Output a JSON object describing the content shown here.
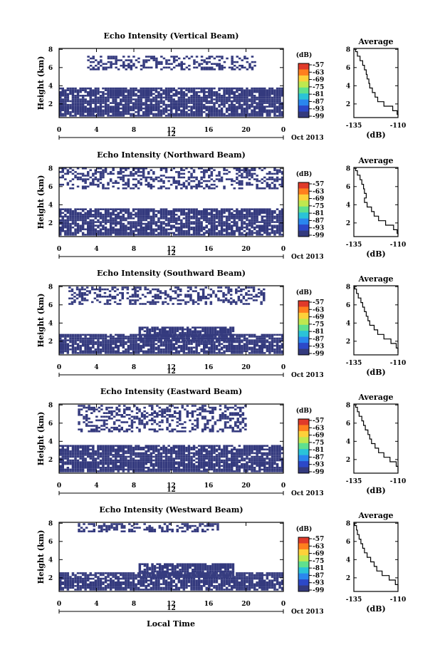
{
  "figure": {
    "x_axis_label": "Local Time",
    "date_label": "Oct 2013",
    "colorbar_unit": "(dB)",
    "colorbar_ticks": [
      "-57",
      "-63",
      "-69",
      "-75",
      "-81",
      "-87",
      "-93",
      "-99"
    ],
    "colorbar_colors": [
      "#e03a2a",
      "#ff7f1e",
      "#fdd13a",
      "#bfe84f",
      "#5fe08e",
      "#2ac3d8",
      "#2a86ee",
      "#2c48c8",
      "#343a7e"
    ],
    "mask_color": "#343a7e"
  },
  "chart_data": [
    {
      "type": "heatmap",
      "title": "Echo Intensity (Vertical Beam)",
      "ylabel": "Height (km)",
      "xlabel": "Local Time",
      "x_ticks": [
        "0",
        "4",
        "8",
        "12",
        "16",
        "20",
        "0"
      ],
      "day_marker": "12",
      "y_ticks": [
        "2",
        "4",
        "6",
        "8"
      ],
      "xlim": [
        0,
        24
      ],
      "ylim": [
        0.5,
        8.1
      ],
      "unit": "dB",
      "color_range": [
        -99,
        -57
      ],
      "echo_regions": [
        {
          "layer": "lower",
          "x_range": [
            0,
            24
          ],
          "height_km": [
            0.6,
            3.7
          ]
        },
        {
          "layer": "upper",
          "x_range": [
            3,
            21
          ],
          "height_km": [
            5.7,
            7.3
          ]
        }
      ],
      "average_profile": {
        "title": "Average",
        "xlabel": "(dB)",
        "x_ticks": [
          "-135",
          "-110"
        ],
        "y_ticks": [
          "2",
          "4",
          "6",
          "8"
        ],
        "xlim": [
          -135,
          -110
        ],
        "ylim": [
          0.5,
          8.1
        ],
        "height_km": [
          8.0,
          7.5,
          7.0,
          6.5,
          6.0,
          5.5,
          5.0,
          4.5,
          4.0,
          3.5,
          3.0,
          2.5,
          2.0,
          1.5,
          1.0,
          0.7
        ],
        "db": [
          -134.0,
          -133.0,
          -131.5,
          -130.0,
          -129.0,
          -128.0,
          -127.5,
          -126.5,
          -126.0,
          -124.5,
          -123.0,
          -121.5,
          -118.0,
          -113.0,
          -110.5,
          -110.0
        ]
      }
    },
    {
      "type": "heatmap",
      "title": "Echo Intensity (Northward Beam)",
      "ylabel": "Height (km)",
      "xlabel": "Local Time",
      "x_ticks": [
        "0",
        "4",
        "8",
        "12",
        "16",
        "20",
        "0"
      ],
      "day_marker": "12",
      "y_ticks": [
        "2",
        "4",
        "6",
        "8"
      ],
      "xlim": [
        0,
        24
      ],
      "ylim": [
        0.5,
        8.1
      ],
      "unit": "dB",
      "color_range": [
        -99,
        -57
      ],
      "echo_regions": [
        {
          "layer": "lower",
          "x_range": [
            0,
            24
          ],
          "height_km": [
            0.6,
            3.5
          ]
        },
        {
          "layer": "upper",
          "x_range": [
            0,
            24
          ],
          "height_km": [
            5.7,
            8.0
          ]
        }
      ],
      "average_profile": {
        "title": "Average",
        "xlabel": "(dB)",
        "x_ticks": [
          "-135",
          "-110"
        ],
        "y_ticks": [
          "2",
          "4",
          "6",
          "8"
        ],
        "xlim": [
          -135,
          -110
        ],
        "ylim": [
          0.5,
          8.1
        ],
        "height_km": [
          8.0,
          7.5,
          7.0,
          6.5,
          6.0,
          5.5,
          5.0,
          4.5,
          4.0,
          3.5,
          3.0,
          2.5,
          2.0,
          1.5,
          1.0,
          0.7
        ],
        "db": [
          -134.0,
          -133.0,
          -131.5,
          -130.5,
          -129.5,
          -129.0,
          -128.0,
          -129.0,
          -127.5,
          -125.0,
          -123.5,
          -121.0,
          -117.0,
          -112.5,
          -110.5,
          -110.0
        ]
      }
    },
    {
      "type": "heatmap",
      "title": "Echo Intensity (Southward Beam)",
      "ylabel": "Height (km)",
      "xlabel": "Local Time",
      "x_ticks": [
        "0",
        "4",
        "8",
        "12",
        "16",
        "20",
        "0"
      ],
      "day_marker": "12",
      "y_ticks": [
        "2",
        "4",
        "6",
        "8"
      ],
      "xlim": [
        0,
        24
      ],
      "ylim": [
        0.5,
        8.1
      ],
      "unit": "dB",
      "color_range": [
        -99,
        -57
      ],
      "echo_regions": [
        {
          "layer": "lower",
          "x_range": [
            0,
            24
          ],
          "height_km": [
            0.6,
            2.8
          ]
        },
        {
          "layer": "middle",
          "x_range": [
            8.5,
            18.5
          ],
          "height_km": [
            2.0,
            3.6
          ]
        },
        {
          "layer": "upper",
          "x_range": [
            1,
            22
          ],
          "height_km": [
            6.0,
            8.0
          ]
        }
      ],
      "average_profile": {
        "title": "Average",
        "xlabel": "(dB)",
        "x_ticks": [
          "-135",
          "-110"
        ],
        "y_ticks": [
          "2",
          "4",
          "6",
          "8"
        ],
        "xlim": [
          -135,
          -110
        ],
        "ylim": [
          0.5,
          8.1
        ],
        "height_km": [
          8.0,
          7.5,
          7.0,
          6.5,
          6.0,
          5.5,
          5.0,
          4.5,
          4.0,
          3.5,
          3.0,
          2.5,
          2.0,
          1.5,
          1.0,
          0.7
        ],
        "db": [
          -134.5,
          -133.5,
          -132.5,
          -131.0,
          -130.0,
          -129.0,
          -128.0,
          -127.0,
          -126.0,
          -123.5,
          -121.5,
          -118.0,
          -114.0,
          -111.0,
          -110.0,
          -110.0
        ]
      }
    },
    {
      "type": "heatmap",
      "title": "Echo Intensity (Eastward Beam)",
      "ylabel": "Height (km)",
      "xlabel": "Local Time",
      "x_ticks": [
        "0",
        "4",
        "8",
        "12",
        "16",
        "20",
        "0"
      ],
      "day_marker": "12",
      "y_ticks": [
        "2",
        "4",
        "6",
        "8"
      ],
      "xlim": [
        0,
        24
      ],
      "ylim": [
        0.5,
        8.1
      ],
      "unit": "dB",
      "color_range": [
        -99,
        -57
      ],
      "echo_regions": [
        {
          "layer": "lower",
          "x_range": [
            0,
            24
          ],
          "height_km": [
            0.6,
            3.6
          ]
        },
        {
          "layer": "upper",
          "x_range": [
            2,
            20
          ],
          "height_km": [
            5.0,
            8.0
          ]
        }
      ],
      "average_profile": {
        "title": "Average",
        "xlabel": "(dB)",
        "x_ticks": [
          "-135",
          "-110"
        ],
        "y_ticks": [
          "2",
          "4",
          "6",
          "8"
        ],
        "xlim": [
          -135,
          -110
        ],
        "ylim": [
          0.5,
          8.1
        ],
        "height_km": [
          8.0,
          7.5,
          7.0,
          6.5,
          6.0,
          5.5,
          5.0,
          4.5,
          4.0,
          3.5,
          3.0,
          2.5,
          2.0,
          1.5,
          1.0,
          0.7
        ],
        "db": [
          -134.0,
          -133.0,
          -132.0,
          -130.5,
          -129.5,
          -128.5,
          -127.0,
          -126.0,
          -125.0,
          -123.0,
          -121.0,
          -118.0,
          -114.5,
          -111.0,
          -110.0,
          -110.0
        ]
      }
    },
    {
      "type": "heatmap",
      "title": "Echo Intensity (Westward Beam)",
      "ylabel": "Height (km)",
      "xlabel": "Local Time",
      "x_ticks": [
        "0",
        "4",
        "8",
        "12",
        "16",
        "20",
        "0"
      ],
      "day_marker": "12",
      "y_ticks": [
        "2",
        "4",
        "6",
        "8"
      ],
      "xlim": [
        0,
        24
      ],
      "ylim": [
        0.5,
        8.1
      ],
      "unit": "dB",
      "color_range": [
        -99,
        -57
      ],
      "echo_regions": [
        {
          "layer": "lower",
          "x_range": [
            0,
            24
          ],
          "height_km": [
            0.6,
            2.6
          ]
        },
        {
          "layer": "middle",
          "x_range": [
            8.5,
            18.5
          ],
          "height_km": [
            2.0,
            3.6
          ]
        },
        {
          "layer": "upper",
          "x_range": [
            2,
            17
          ],
          "height_km": [
            7.0,
            8.0
          ]
        }
      ],
      "average_profile": {
        "title": "Average",
        "xlabel": "(dB)",
        "x_ticks": [
          "-135",
          "-110"
        ],
        "y_ticks": [
          "2",
          "4",
          "6",
          "8"
        ],
        "xlim": [
          -135,
          -110
        ],
        "ylim": [
          0.5,
          8.1
        ],
        "height_km": [
          8.0,
          7.5,
          7.0,
          6.5,
          6.0,
          5.5,
          5.0,
          4.5,
          4.0,
          3.5,
          3.0,
          2.5,
          2.0,
          1.5,
          1.0,
          0.7
        ],
        "db": [
          -134.5,
          -133.5,
          -133.0,
          -132.0,
          -131.0,
          -130.0,
          -129.0,
          -127.5,
          -125.5,
          -123.5,
          -122.0,
          -119.0,
          -115.0,
          -111.5,
          -110.0,
          -110.0
        ]
      }
    }
  ]
}
